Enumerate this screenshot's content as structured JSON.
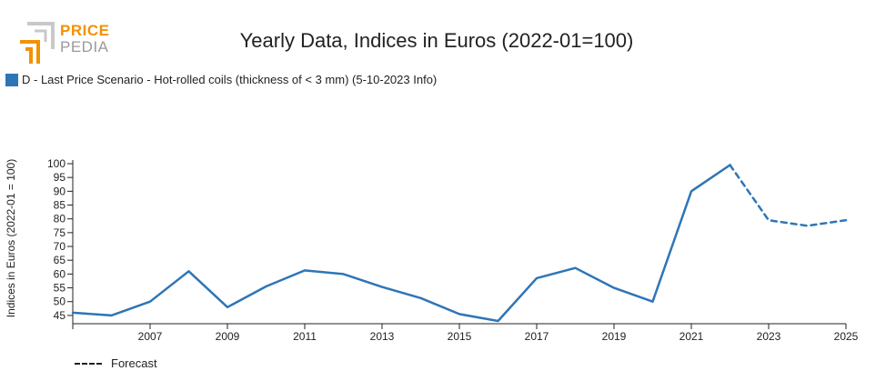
{
  "logo": {
    "line1": "PRICE",
    "line2": "PEDIA"
  },
  "colors": {
    "series": "#2e75b6",
    "logo_orange": "#f39200",
    "axis": "#222222"
  },
  "chart_data": {
    "type": "line",
    "title": "Yearly Data, Indices in Euros (2022-01=100)",
    "ylabel": "Indices in Euros (2022-01 = 100)",
    "xlabel": "",
    "xlim": [
      2005,
      2025
    ],
    "ylim": [
      42,
      100
    ],
    "yticks": [
      45,
      50,
      55,
      60,
      65,
      70,
      75,
      80,
      85,
      90,
      95,
      100
    ],
    "xticks": [
      2007,
      2009,
      2011,
      2013,
      2015,
      2017,
      2019,
      2021,
      2023,
      2025
    ],
    "grid": false,
    "legend_position": "top-left",
    "series": [
      {
        "name": "D - Last Price Scenario - Hot-rolled coils (thickness of < 3 mm) (5-10-2023 Info)",
        "x": [
          2005,
          2006,
          2007,
          2008,
          2009,
          2010,
          2011,
          2012,
          2013,
          2014,
          2015,
          2016,
          2017,
          2018,
          2019,
          2020,
          2021,
          2022
        ],
        "values": [
          46,
          45,
          50,
          61,
          48,
          55.5,
          61.3,
          60,
          55.3,
          51.3,
          45.5,
          43,
          58.5,
          62.2,
          55,
          50,
          90,
          99.5
        ]
      },
      {
        "name": "Forecast",
        "x": [
          2022,
          2023,
          2024,
          2025
        ],
        "values": [
          99.5,
          79.5,
          77.5,
          79.5
        ],
        "dashed": true
      }
    ]
  }
}
